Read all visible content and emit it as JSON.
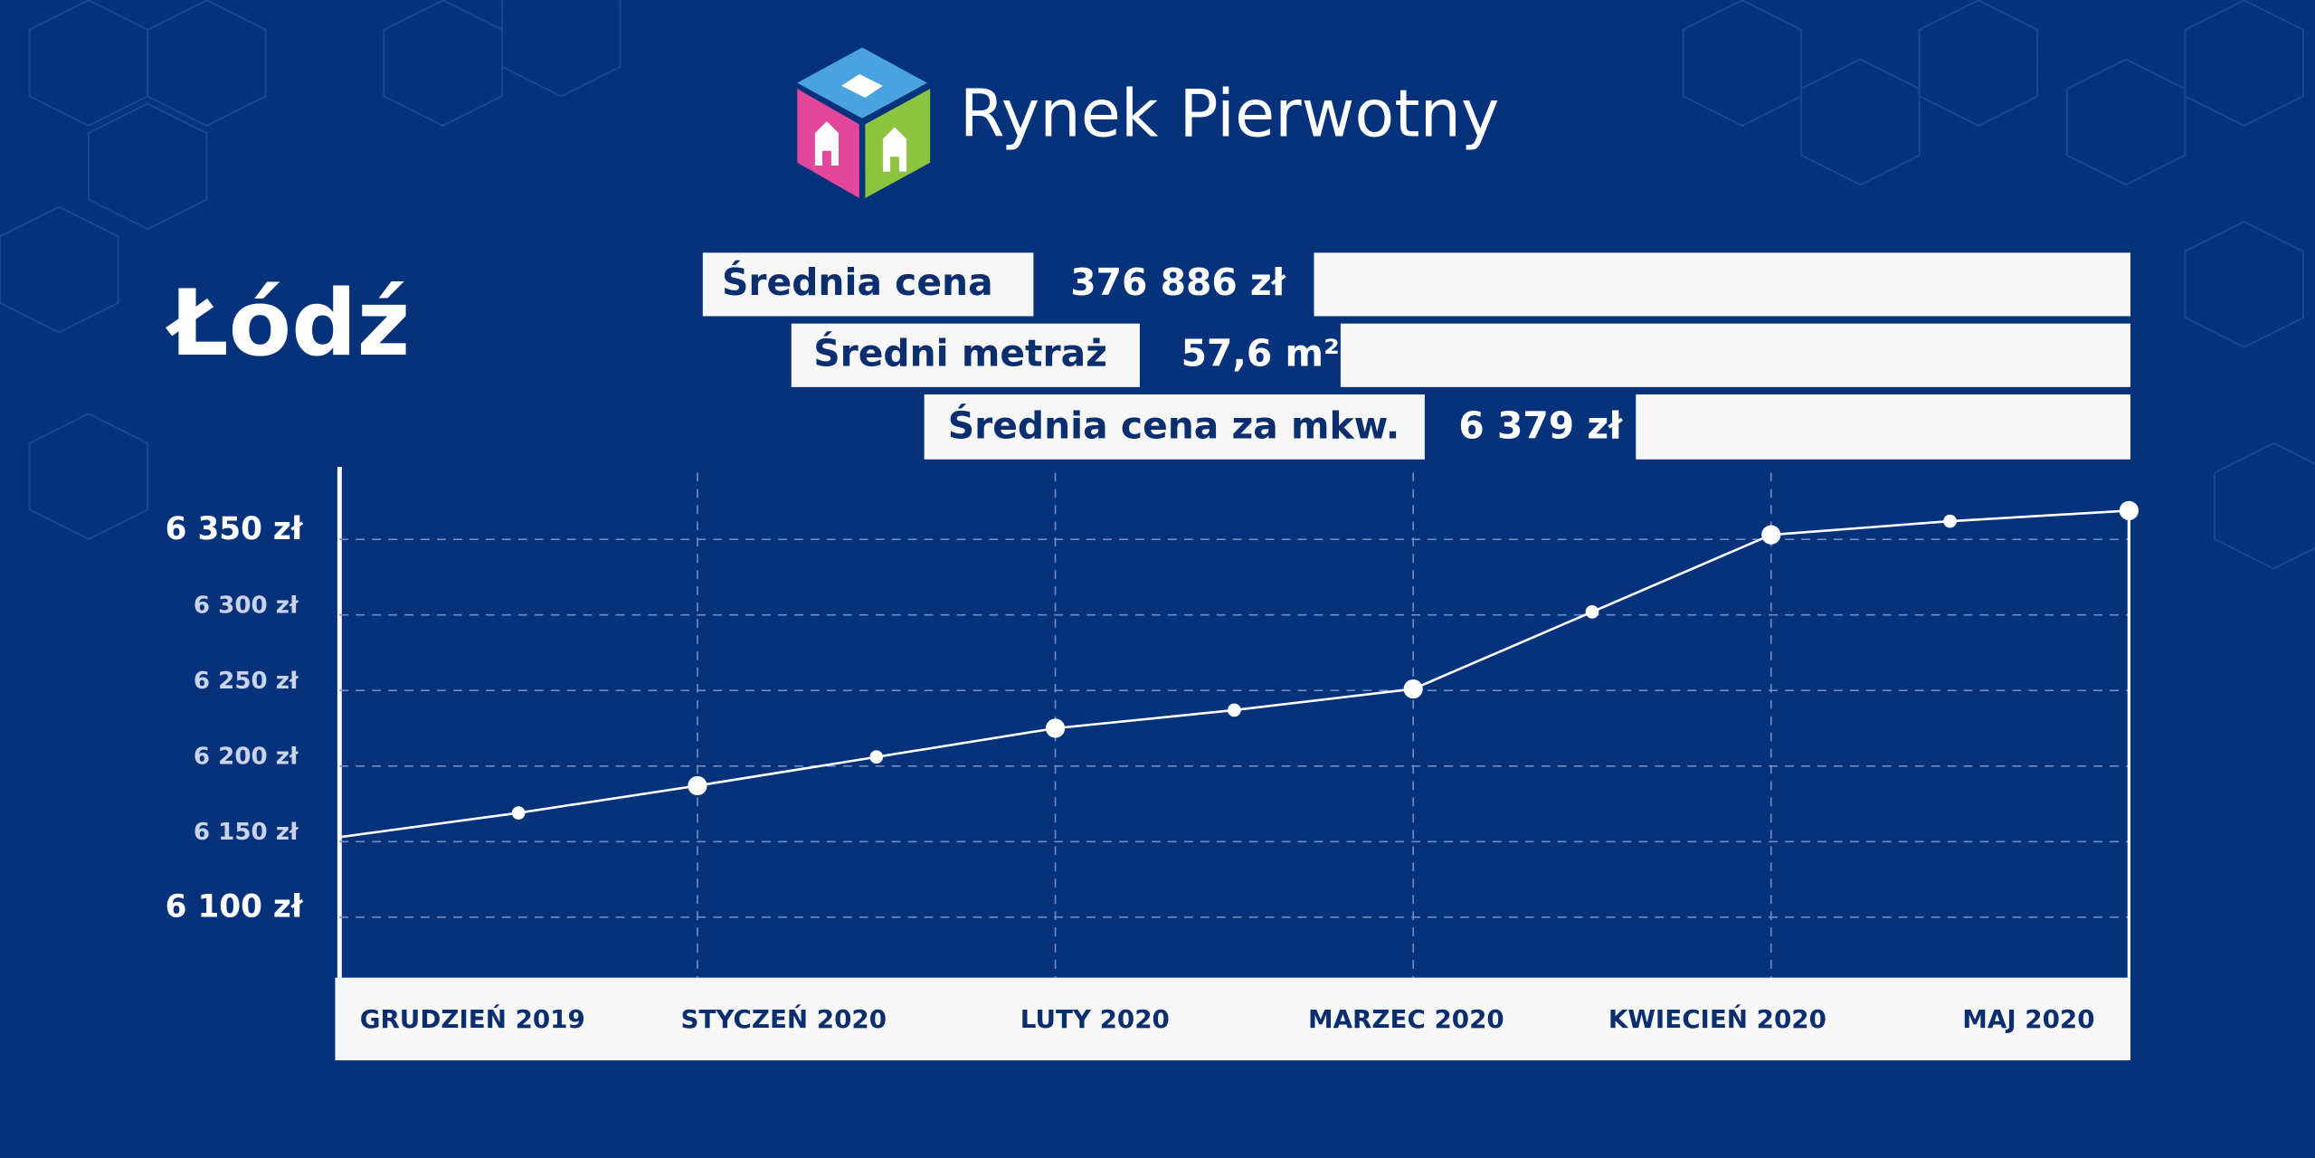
{
  "logo_text": "Rynek Pierwotny",
  "city": "Łódź",
  "stats": [
    {
      "label": "Średnia cena",
      "value": "376 886 zł"
    },
    {
      "label": "Średni metraż",
      "value": "57,6 m²"
    },
    {
      "label": "Średnia cena za mkw.",
      "value": "6 379 zł"
    }
  ],
  "chart_data": {
    "type": "line",
    "categories": [
      "GRUDZIEŃ 2019",
      null,
      "STYCZEŃ 2020",
      null,
      "LUTY 2020",
      null,
      "MARZEC 2020",
      null,
      "KWIECIEŃ 2020",
      null,
      "MAJ 2020"
    ],
    "values": [
      6153,
      6169,
      6187,
      6206,
      6225,
      6237,
      6251,
      6302,
      6353,
      6362,
      6369
    ],
    "color": "#ffffff",
    "ylim": [
      6060,
      6398
    ],
    "yticks": [
      {
        "value": 6100,
        "label": "6 100 zł"
      },
      {
        "value": 6150,
        "label": "6 150 zł"
      },
      {
        "value": 6200,
        "label": "6 200 zł"
      },
      {
        "value": 6250,
        "label": "6 250 zł"
      },
      {
        "value": 6300,
        "label": "6 300 zł"
      },
      {
        "value": 6350,
        "label": "6 350 zł"
      }
    ],
    "grid": true
  }
}
